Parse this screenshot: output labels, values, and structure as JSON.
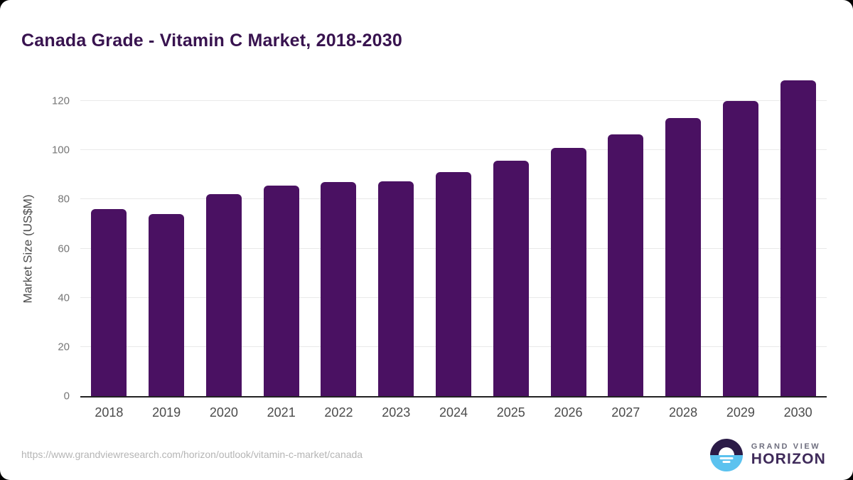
{
  "header": {
    "title": "Canada Grade - Vitamin C Market, 2018-2030"
  },
  "chart_data": {
    "type": "bar",
    "title": "Canada Grade - Vitamin C Market, 2018-2030",
    "categories": [
      "2018",
      "2019",
      "2020",
      "2021",
      "2022",
      "2023",
      "2024",
      "2025",
      "2026",
      "2027",
      "2028",
      "2029",
      "2030"
    ],
    "values": [
      76,
      74,
      82,
      85.7,
      87,
      87.4,
      91,
      95.6,
      101,
      106.4,
      113,
      120,
      128.5
    ],
    "xlabel": "",
    "ylabel": "Market Size (US$M)",
    "ylim": [
      0,
      120
    ],
    "yticks": [
      0,
      20,
      40,
      60,
      80,
      100,
      120
    ],
    "grid": "horizontal",
    "legend": "none"
  },
  "footer": {
    "source_url": "https://www.grandviewresearch.com/horizon/outlook/vitamin-c-market/canada",
    "logo": {
      "line1": "GRAND VIEW",
      "line2": "HORIZON"
    }
  },
  "colors": {
    "bar": "#4a1162",
    "title": "#38134f",
    "gridline": "#e9e9e9",
    "axis_line": "#222222",
    "tick_label": "#767676",
    "x_label": "#4b4b4b",
    "source_text": "#b5b5b5",
    "logo_navy": "#2b1b47",
    "logo_blue": "#5bc2ef"
  }
}
